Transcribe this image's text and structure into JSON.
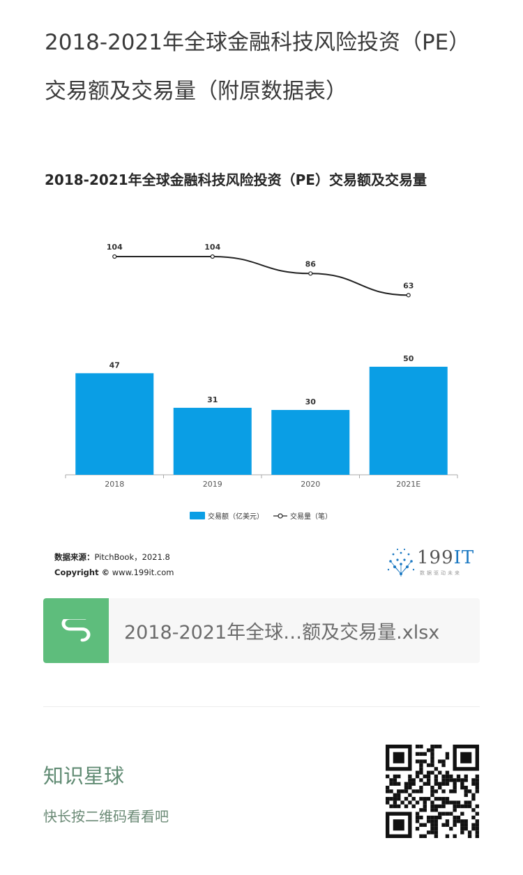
{
  "post": {
    "title": "2018-2021年全球金融科技风险投资（PE）交易额及交易量（附原数据表）"
  },
  "chart": {
    "title": "2018-2021年全球金融科技风险投资（PE）交易额及交易量",
    "source_label": "数据来源：",
    "source_text": "PitchBook，2021.8",
    "copyright_label": "Copyright ©",
    "copyright_text": "www.199it.com",
    "brand_main": "199",
    "brand_accent": "IT",
    "brand_slogan": "数据驱动未来",
    "colors": {
      "bar": "#0a9ee5",
      "line": "#222222",
      "axis": "#aaaaaa"
    }
  },
  "chart_data": {
    "type": "bar",
    "categories": [
      "2018",
      "2019",
      "2020",
      "2021E"
    ],
    "series": [
      {
        "name": "交易额（亿美元）",
        "type": "bar",
        "values": [
          47,
          31,
          30,
          50
        ]
      },
      {
        "name": "交易量（笔）",
        "type": "line",
        "values": [
          104,
          104,
          86,
          63
        ]
      }
    ],
    "legend_position": "bottom",
    "grid": false
  },
  "attachment": {
    "filename": "2018-2021年全球…额及交易量.xlsx",
    "icon": "spreadsheet-icon"
  },
  "footer": {
    "title": "知识星球",
    "subtitle": "快长按二维码看看吧",
    "qr_icon": "qr-code-icon"
  }
}
